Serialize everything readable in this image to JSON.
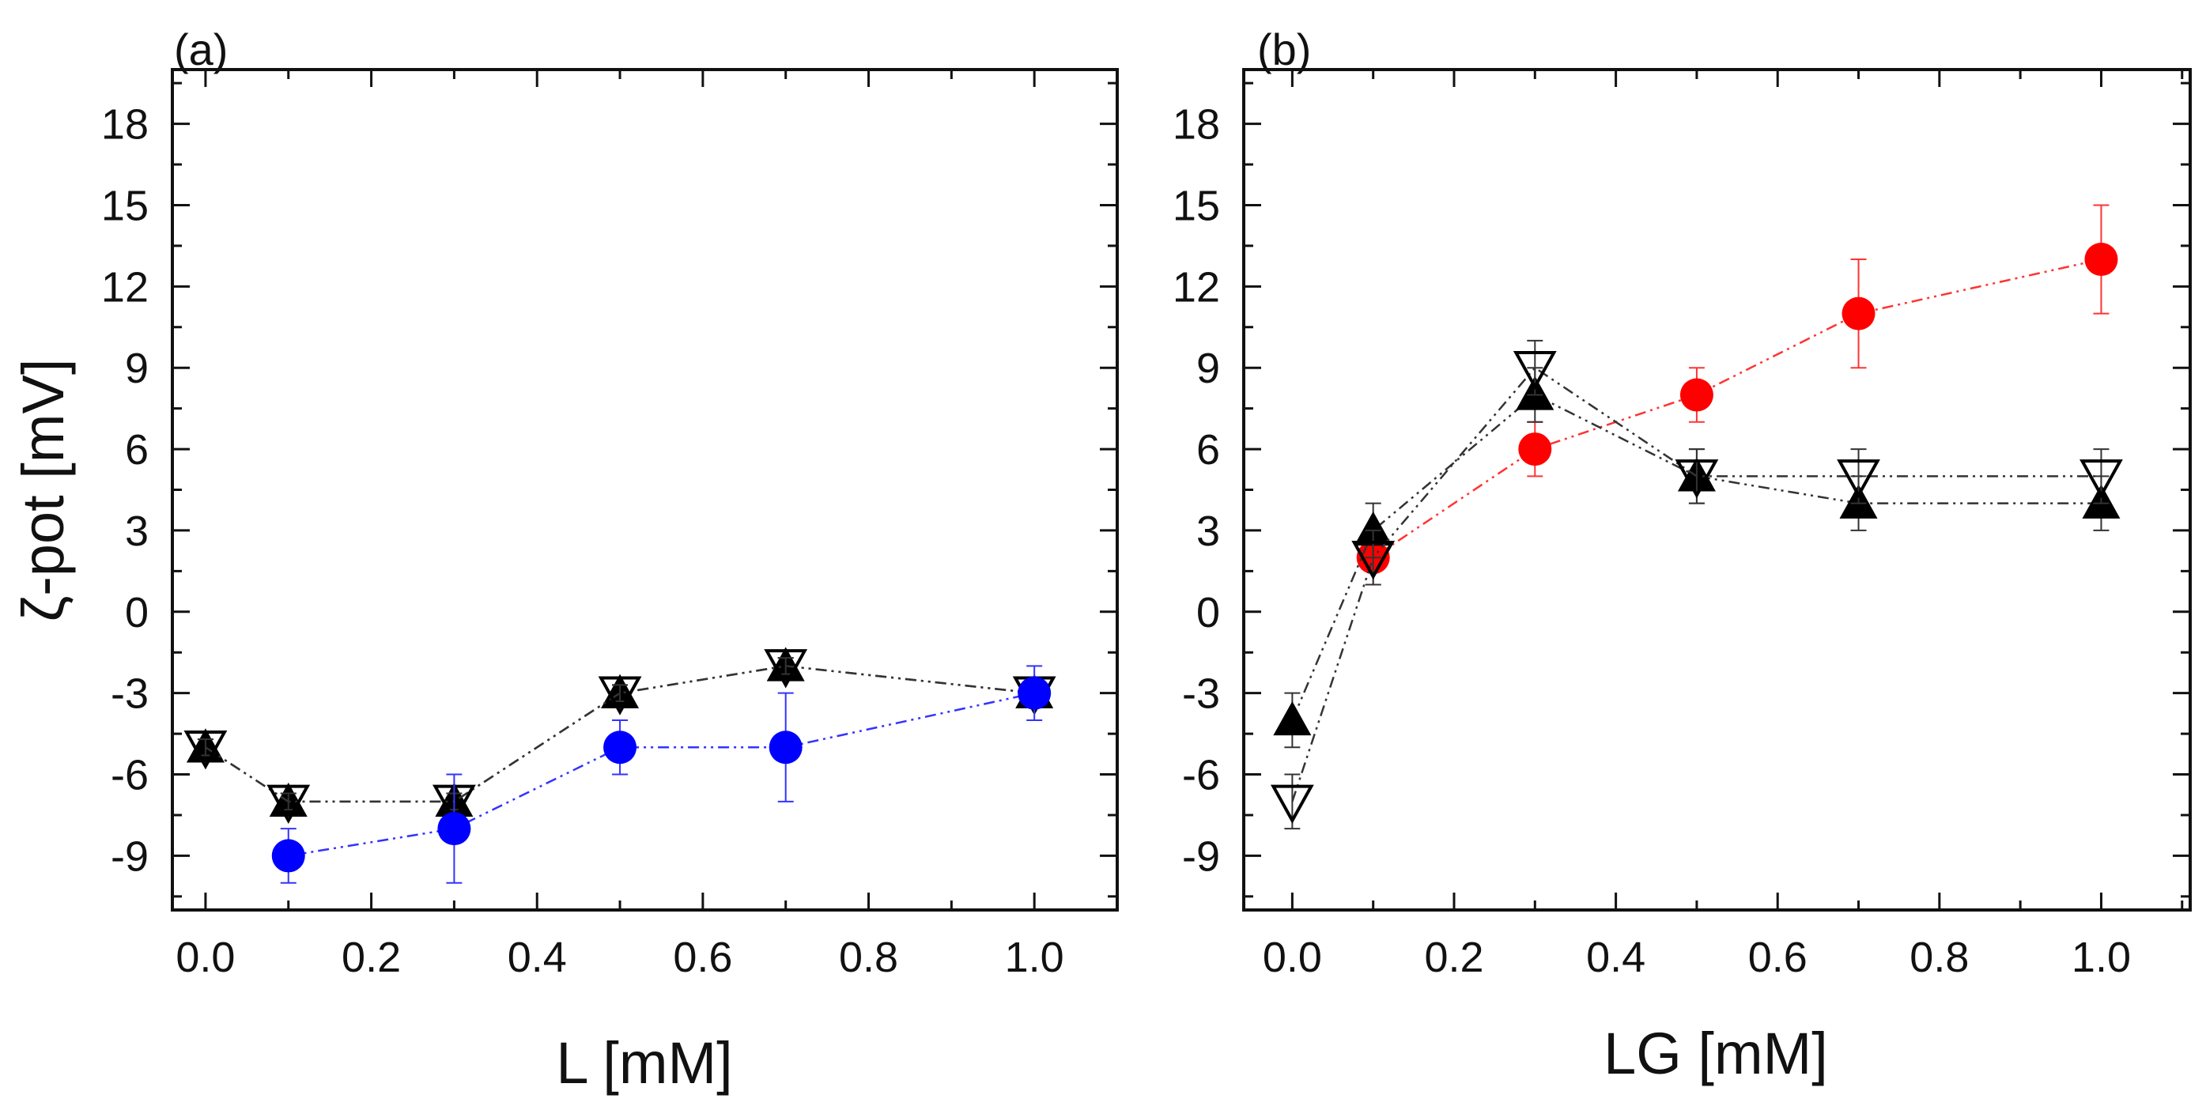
{
  "figure": {
    "ylabel": "ζ-pot [mV]"
  },
  "chart_data": [
    {
      "type": "scatter",
      "panel_label": "(a)",
      "xlabel": "L [mM]",
      "ylabel": "ζ-pot [mV]",
      "xlim": [
        -0.04,
        1.1
      ],
      "ylim": [
        -11,
        20
      ],
      "xticks": [
        0.0,
        0.2,
        0.4,
        0.6,
        0.8,
        1.0
      ],
      "xtick_labels": [
        "0.0",
        "0.2",
        "0.4",
        "0.6",
        "0.8",
        "1.0"
      ],
      "yticks": [
        -9,
        -6,
        -3,
        0,
        3,
        6,
        9,
        12,
        15,
        18
      ],
      "ytick_labels": [
        "-9",
        "-6",
        "-3",
        "0",
        "3",
        "6",
        "9",
        "12",
        "15",
        "18"
      ],
      "series": [
        {
          "name": "filled triangle",
          "marker": "triangle-up",
          "color": "#000000",
          "line_color": "#333333",
          "x": [
            0.0,
            0.1,
            0.3,
            0.5,
            0.7,
            1.0
          ],
          "y": [
            -5,
            -7,
            -7,
            -3,
            -2,
            -3
          ],
          "err": [
            0.3,
            0.3,
            0.3,
            0.3,
            0.3,
            0.5
          ]
        },
        {
          "name": "open inverted triangle",
          "marker": "triangle-down-open",
          "color": "#000000",
          "line_color": "#333333",
          "x": [
            0.0,
            0.1,
            0.3,
            0.5,
            0.7,
            1.0
          ],
          "y": [
            -5,
            -7,
            -7,
            -3,
            -2,
            -3
          ],
          "err": [
            0.3,
            0.3,
            0.3,
            0.3,
            0.3,
            0.5
          ]
        },
        {
          "name": "filled circle",
          "marker": "circle",
          "color": "#0000ff",
          "line_color": "#3333ff",
          "x": [
            0.1,
            0.3,
            0.5,
            0.7,
            1.0
          ],
          "y": [
            -9,
            -8,
            -5,
            -5,
            -3
          ],
          "err": [
            1,
            2,
            1,
            2,
            1
          ]
        }
      ]
    },
    {
      "type": "scatter",
      "panel_label": "(b)",
      "xlabel": "LG [mM]",
      "ylabel": "",
      "xlim": [
        -0.06,
        1.11
      ],
      "ylim": [
        -11,
        20
      ],
      "xticks": [
        0.0,
        0.2,
        0.4,
        0.6,
        0.8,
        1.0
      ],
      "xtick_labels": [
        "0.0",
        "0.2",
        "0.4",
        "0.6",
        "0.8",
        "1.0"
      ],
      "yticks": [
        -9,
        -6,
        -3,
        0,
        3,
        6,
        9,
        12,
        15,
        18
      ],
      "ytick_labels": [
        "-9",
        "-6",
        "-3",
        "0",
        "3",
        "6",
        "9",
        "12",
        "15",
        "18"
      ],
      "series": [
        {
          "name": "filled circle",
          "marker": "circle",
          "color": "#ff0000",
          "line_color": "#ff3333",
          "x": [
            0.1,
            0.3,
            0.5,
            0.7,
            1.0
          ],
          "y": [
            2,
            6,
            8,
            11,
            13
          ],
          "err": [
            1,
            1,
            1,
            2,
            2
          ]
        },
        {
          "name": "filled triangle",
          "marker": "triangle-up",
          "color": "#000000",
          "line_color": "#333333",
          "x": [
            0.0,
            0.1,
            0.3,
            0.5,
            0.7,
            1.0
          ],
          "y": [
            -4,
            3,
            8,
            5,
            4,
            4
          ],
          "err": [
            1,
            1,
            1,
            1,
            1,
            1
          ]
        },
        {
          "name": "open inverted triangle",
          "marker": "triangle-down-open",
          "color": "#000000",
          "line_color": "#333333",
          "x": [
            0.0,
            0.1,
            0.3,
            0.5,
            0.7,
            1.0
          ],
          "y": [
            -7,
            2,
            9,
            5,
            5,
            5
          ],
          "err": [
            1,
            1,
            1,
            1,
            1,
            1
          ]
        }
      ]
    }
  ]
}
